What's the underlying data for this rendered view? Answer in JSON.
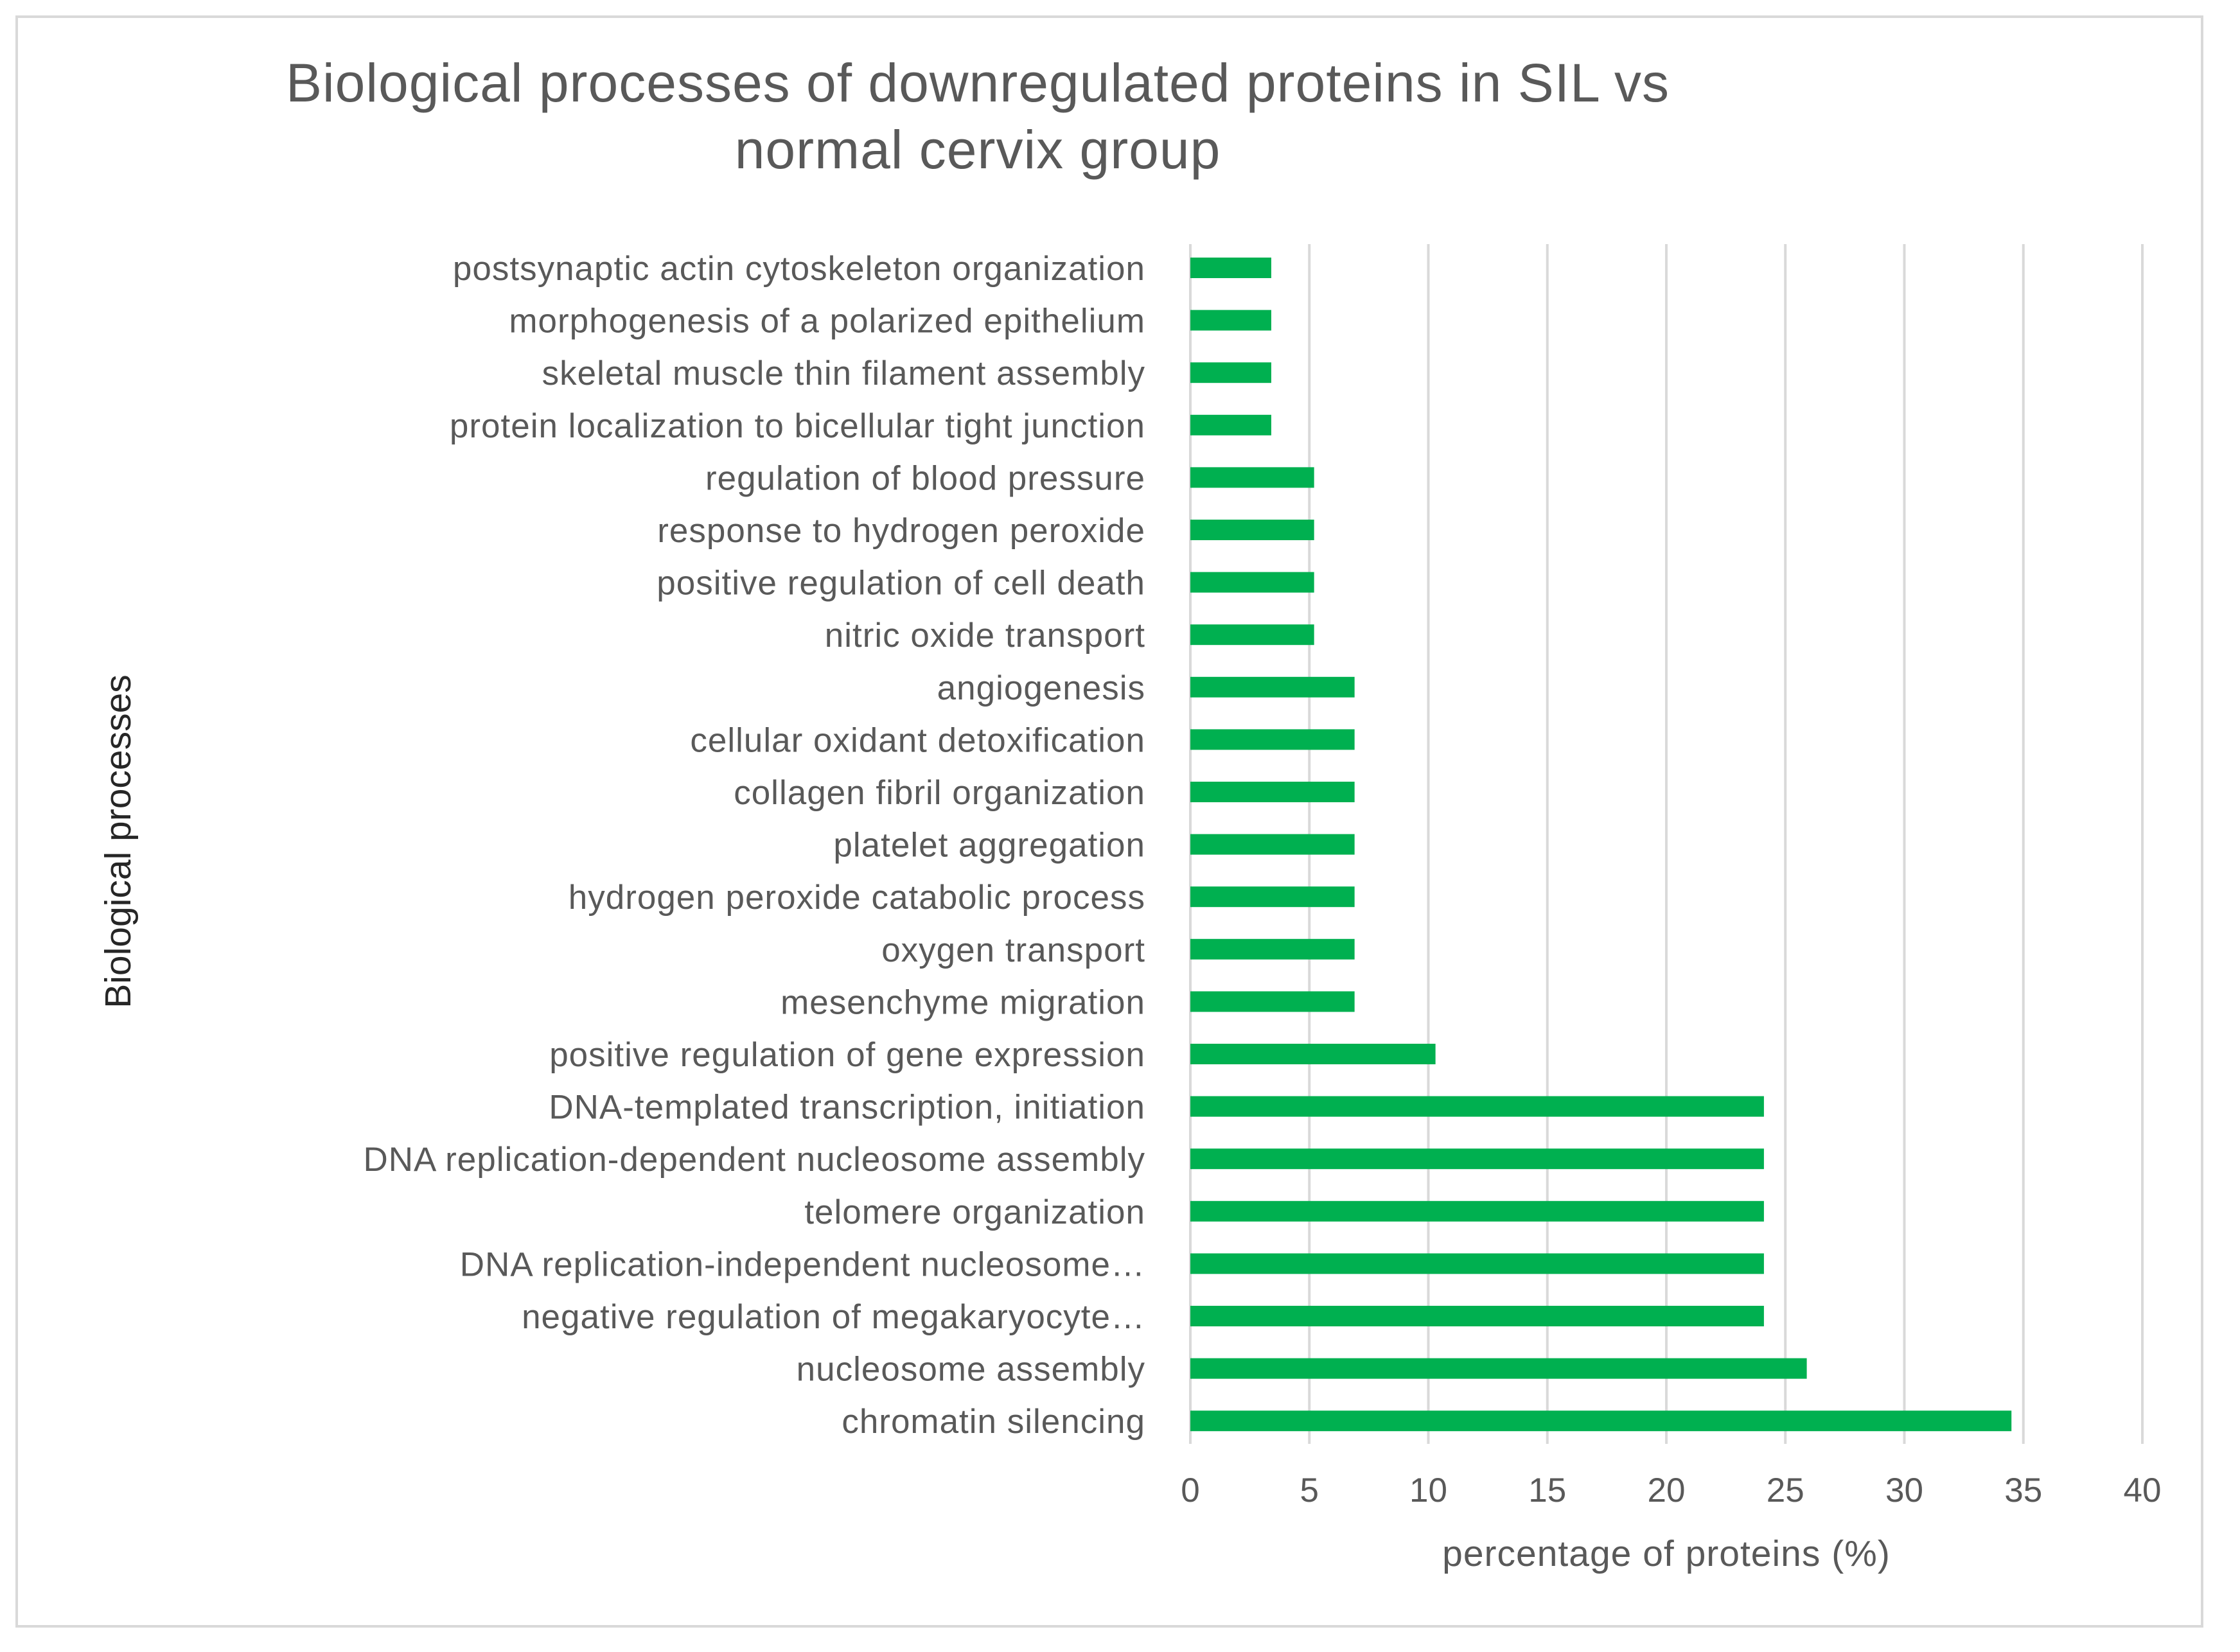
{
  "chart_data": {
    "type": "bar",
    "orientation": "horizontal",
    "title_lines": [
      "Biological processes of downregulated proteins in SIL vs",
      "normal cervix group"
    ],
    "xlabel": "percentage of proteins (%)",
    "ylabel": "Biological processes",
    "xlim": [
      0,
      40
    ],
    "xticks": [
      0,
      5,
      10,
      15,
      20,
      25,
      30,
      35,
      40
    ],
    "grid": "vertical",
    "legend": "none",
    "bar_color": "#00B050",
    "categories": [
      "postsynaptic actin cytoskeleton organization",
      "morphogenesis of a polarized epithelium",
      "skeletal muscle thin filament assembly",
      "protein localization to bicellular tight junction",
      "regulation of blood pressure",
      "response to hydrogen peroxide",
      "positive regulation of cell death",
      "nitric oxide transport",
      "angiogenesis",
      "cellular oxidant detoxification",
      "collagen fibril organization",
      "platelet aggregation",
      "hydrogen peroxide catabolic process",
      "oxygen transport",
      "mesenchyme migration",
      "positive regulation of gene expression",
      "DNA-templated transcription, initiation",
      "DNA replication-dependent nucleosome assembly",
      "telomere organization",
      "DNA replication-independent nucleosome…",
      "negative regulation of megakaryocyte…",
      "nucleosome assembly",
      "chromatin silencing"
    ],
    "values": [
      3.4,
      3.4,
      3.4,
      3.4,
      5.2,
      5.2,
      5.2,
      5.2,
      6.9,
      6.9,
      6.9,
      6.9,
      6.9,
      6.9,
      6.9,
      10.3,
      24.1,
      24.1,
      24.1,
      24.1,
      24.1,
      25.9,
      34.5
    ]
  }
}
